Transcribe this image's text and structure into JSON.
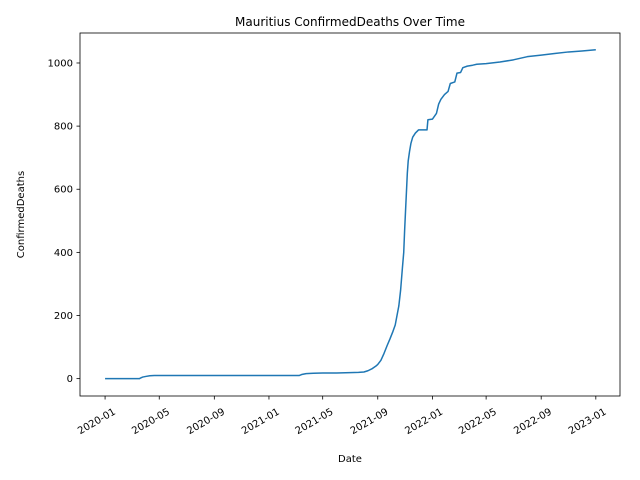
{
  "chart_data": {
    "type": "line",
    "title": "Mauritius  ConfirmedDeaths Over Time",
    "xlabel": "Date",
    "ylabel": "ConfirmedDeaths",
    "xlim": [
      "2019-11-06",
      "2023-02-24"
    ],
    "ylim": [
      -55,
      1095
    ],
    "grid": false,
    "x_ticks": [
      "2020-01",
      "2020-05",
      "2020-09",
      "2021-01",
      "2021-05",
      "2021-09",
      "2022-01",
      "2022-05",
      "2022-09",
      "2023-01"
    ],
    "y_ticks": [
      0,
      200,
      400,
      600,
      800,
      1000
    ],
    "series": [
      {
        "color": "#1f77b4",
        "points": [
          [
            "2020-01-01",
            0
          ],
          [
            "2020-03-18",
            0
          ],
          [
            "2020-03-20",
            2
          ],
          [
            "2020-03-25",
            5
          ],
          [
            "2020-04-01",
            7
          ],
          [
            "2020-04-10",
            9
          ],
          [
            "2020-04-20",
            10
          ],
          [
            "2020-05-01",
            10
          ],
          [
            "2020-09-01",
            10
          ],
          [
            "2021-01-01",
            10
          ],
          [
            "2021-03-10",
            10
          ],
          [
            "2021-03-15",
            13
          ],
          [
            "2021-03-25",
            16
          ],
          [
            "2021-04-10",
            17
          ],
          [
            "2021-05-01",
            18
          ],
          [
            "2021-06-01",
            18
          ],
          [
            "2021-07-01",
            19
          ],
          [
            "2021-07-20",
            20
          ],
          [
            "2021-08-01",
            21
          ],
          [
            "2021-08-10",
            25
          ],
          [
            "2021-08-20",
            32
          ],
          [
            "2021-08-28",
            40
          ],
          [
            "2021-09-01",
            45
          ],
          [
            "2021-09-08",
            58
          ],
          [
            "2021-09-15",
            80
          ],
          [
            "2021-09-22",
            105
          ],
          [
            "2021-09-28",
            125
          ],
          [
            "2021-10-05",
            150
          ],
          [
            "2021-10-10",
            170
          ],
          [
            "2021-10-14",
            200
          ],
          [
            "2021-10-18",
            230
          ],
          [
            "2021-10-22",
            280
          ],
          [
            "2021-10-26",
            350
          ],
          [
            "2021-10-29",
            400
          ],
          [
            "2021-10-31",
            470
          ],
          [
            "2021-11-02",
            530
          ],
          [
            "2021-11-04",
            590
          ],
          [
            "2021-11-06",
            650
          ],
          [
            "2021-11-08",
            690
          ],
          [
            "2021-11-11",
            720
          ],
          [
            "2021-11-14",
            745
          ],
          [
            "2021-11-18",
            765
          ],
          [
            "2021-11-24",
            778
          ],
          [
            "2021-12-01",
            788
          ],
          [
            "2021-12-10",
            788
          ],
          [
            "2021-12-20",
            788
          ],
          [
            "2021-12-22",
            820
          ],
          [
            "2022-01-01",
            822
          ],
          [
            "2022-01-10",
            840
          ],
          [
            "2022-01-15",
            870
          ],
          [
            "2022-01-20",
            885
          ],
          [
            "2022-01-28",
            900
          ],
          [
            "2022-02-05",
            910
          ],
          [
            "2022-02-10",
            935
          ],
          [
            "2022-02-20",
            940
          ],
          [
            "2022-02-25",
            968
          ],
          [
            "2022-03-05",
            970
          ],
          [
            "2022-03-10",
            985
          ],
          [
            "2022-03-20",
            990
          ],
          [
            "2022-04-01",
            993
          ],
          [
            "2022-04-10",
            996
          ],
          [
            "2022-05-01",
            998
          ],
          [
            "2022-06-01",
            1003
          ],
          [
            "2022-07-01",
            1010
          ],
          [
            "2022-08-01",
            1020
          ],
          [
            "2022-09-01",
            1025
          ],
          [
            "2022-10-01",
            1030
          ],
          [
            "2022-11-01",
            1035
          ],
          [
            "2022-12-01",
            1038
          ],
          [
            "2023-01-01",
            1042
          ]
        ]
      }
    ]
  }
}
